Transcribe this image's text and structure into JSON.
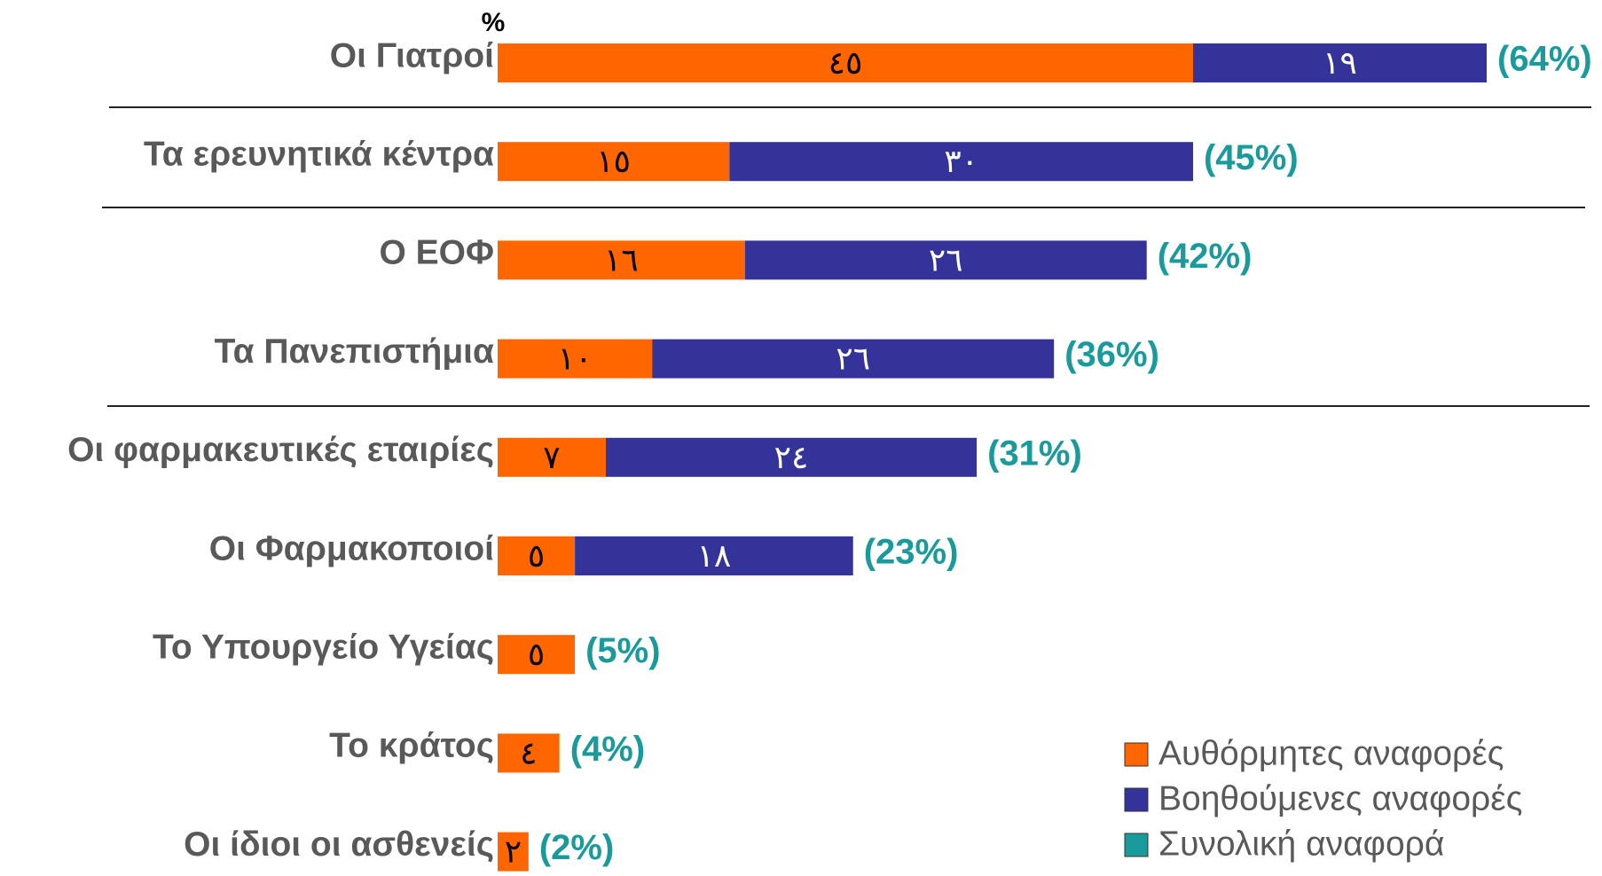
{
  "chart_data": {
    "type": "stacked-bar-horizontal",
    "unit_label": "%",
    "categories": [
      "Οι Γιατροί",
      "Τα ερευνητικά κέντρα",
      "Ο ΕΟΦ",
      "Τα Πανεπιστήμια",
      "Οι φαρμακευτικές εταιρίες",
      "Οι Φαρμακοποιοί",
      "Το Υπουργείο Υγείας",
      "Το κράτος",
      "Οι ίδιοι οι ασθενείς"
    ],
    "series": [
      {
        "name": "Αυθόρμητες αναφορές",
        "color": "#ff6600",
        "values": [
          45,
          15,
          16,
          10,
          7,
          5,
          5,
          4,
          2
        ],
        "value_labels": [
          "٤٥",
          "١٥",
          "١٦",
          "١٠",
          "٧",
          "٥",
          "٥",
          "٤",
          "٢"
        ]
      },
      {
        "name": "Βοηθούμενες αναφορές",
        "color": "#333399",
        "values": [
          19,
          30,
          26,
          26,
          24,
          18,
          null,
          null,
          null
        ],
        "value_labels": [
          "١٩",
          "٣٠",
          "٢٦",
          "٢٦",
          "٢٤",
          "١٨",
          null,
          null,
          null
        ]
      },
      {
        "name": "Συνολική αναφορά",
        "color": "#1a9b9b",
        "values": [
          64,
          45,
          42,
          36,
          31,
          23,
          5,
          4,
          2
        ],
        "value_labels": [
          "(64%)",
          "(45%)",
          "(42%)",
          "(36%)",
          "(31%)",
          "(23%)",
          "(5%)",
          "(4%)",
          "(2%)"
        ]
      }
    ]
  }
}
